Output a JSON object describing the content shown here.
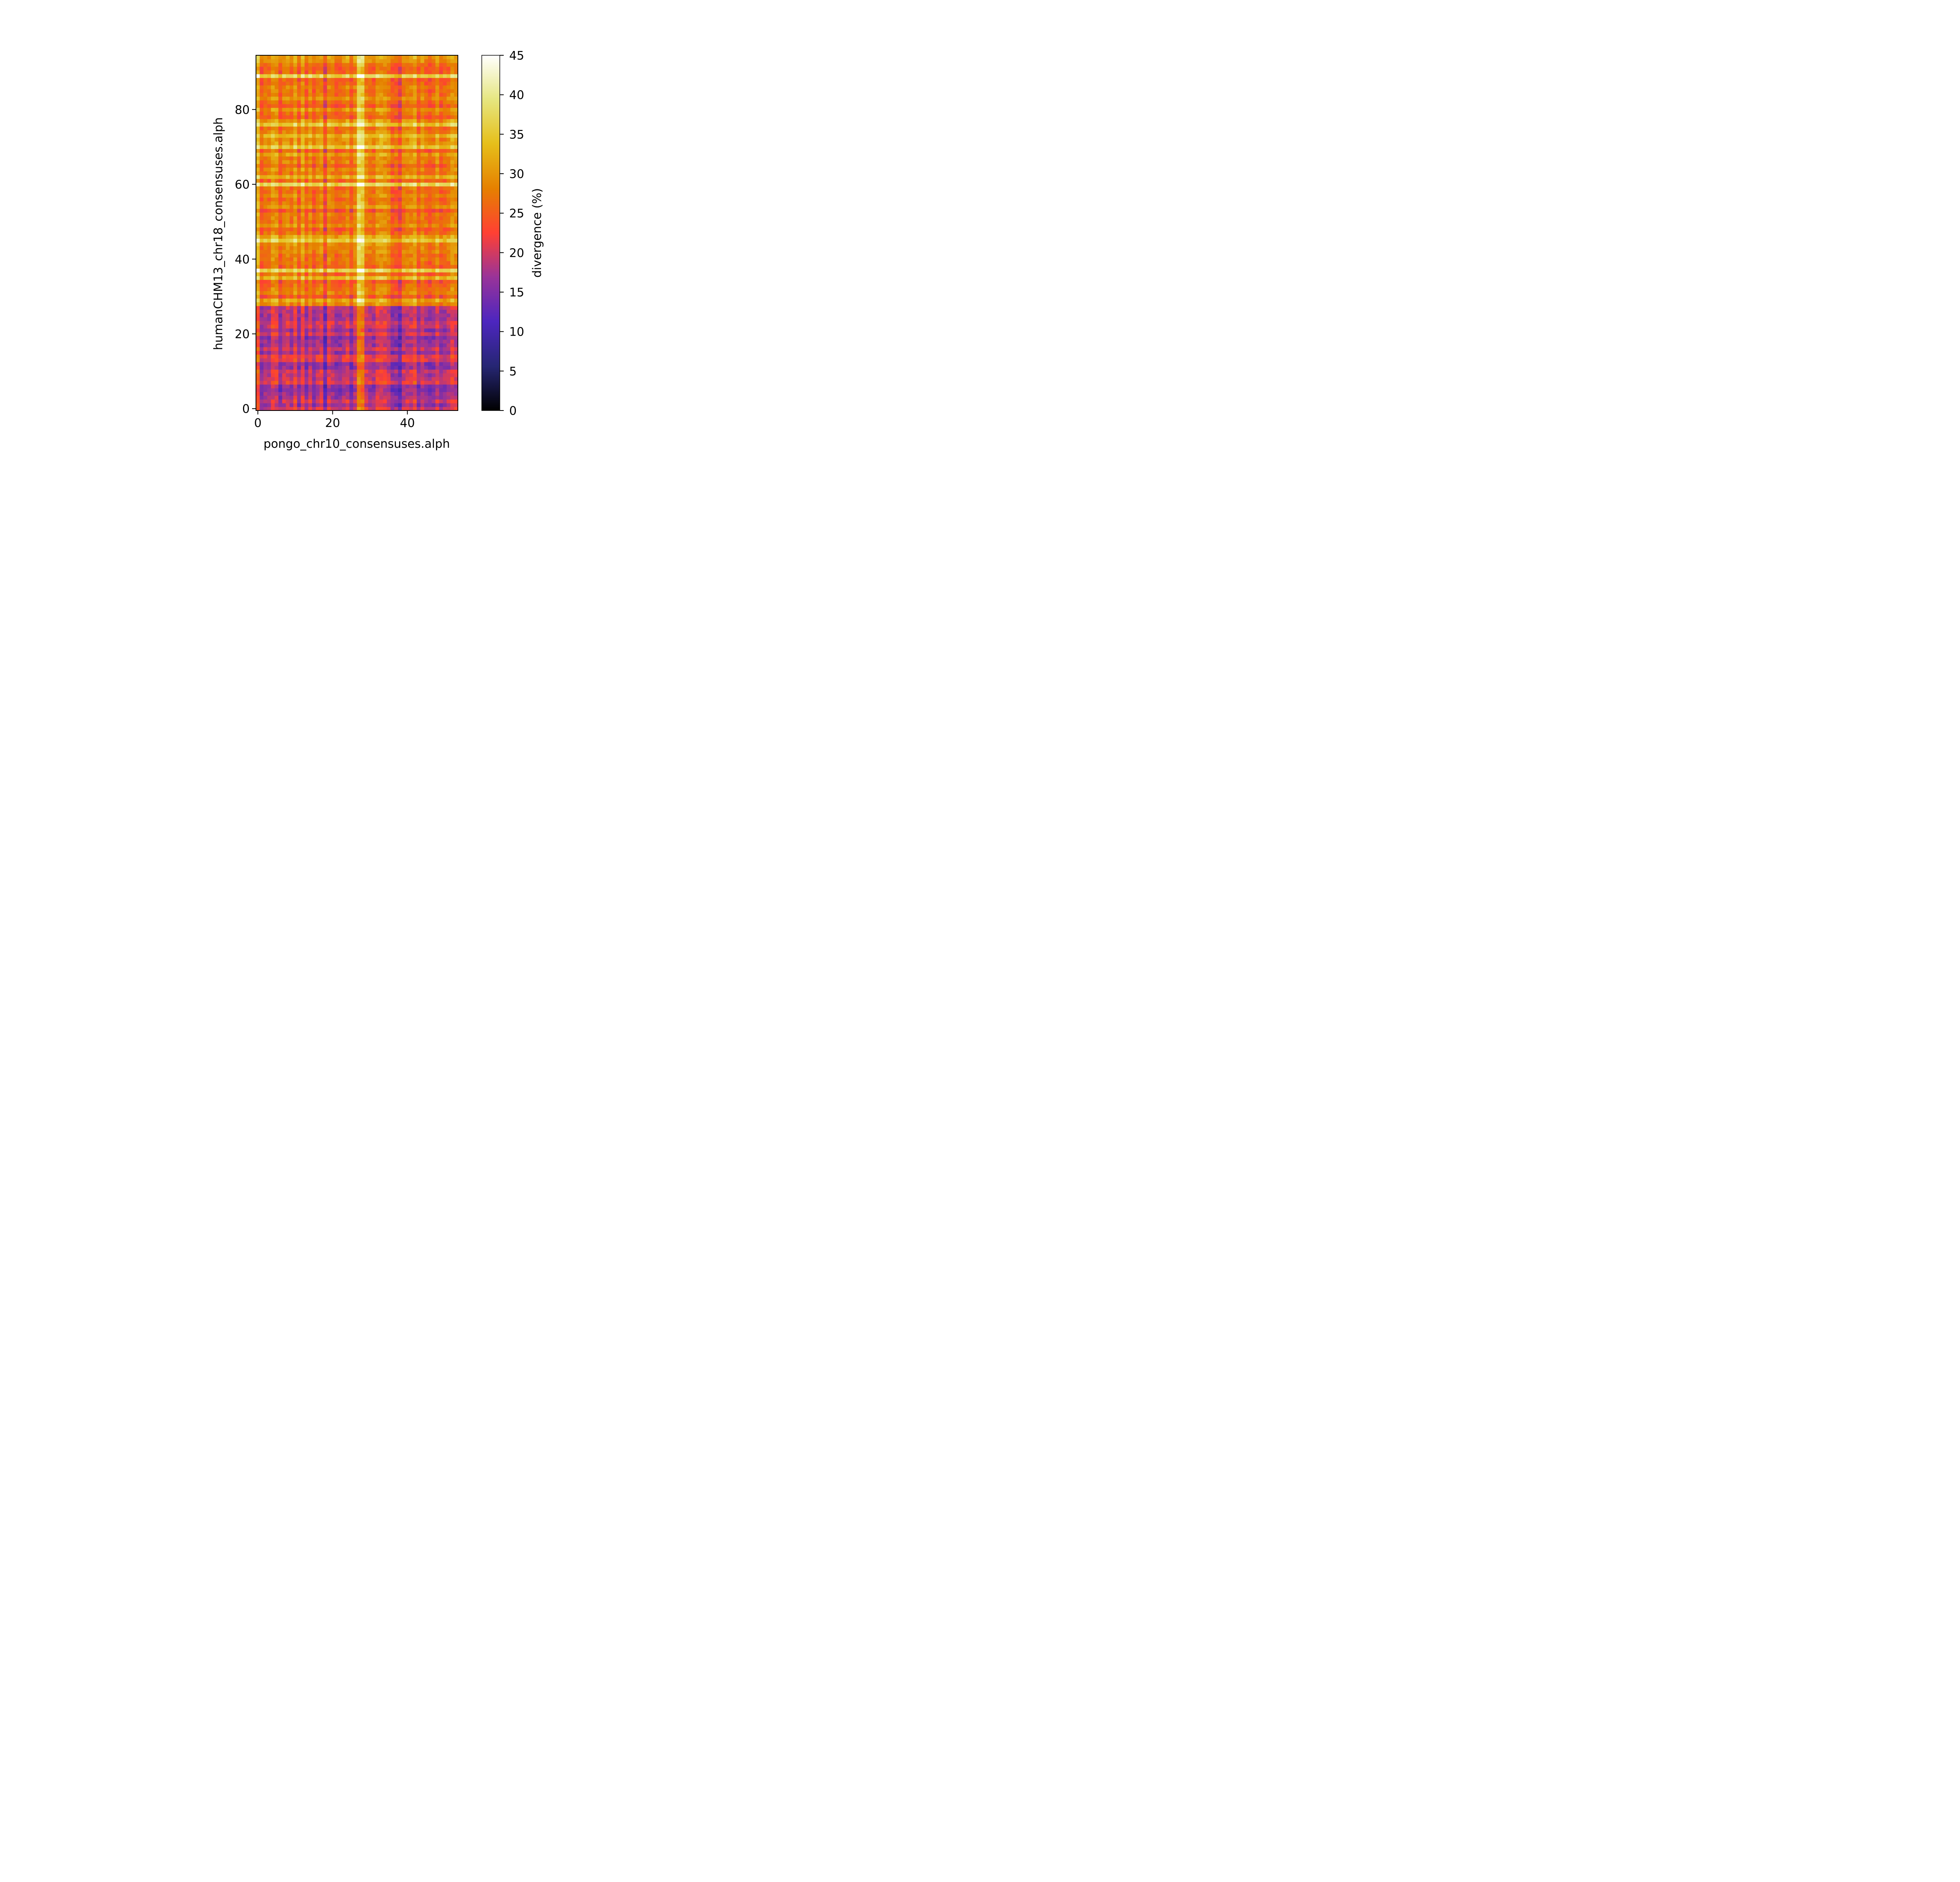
{
  "chart_data": {
    "type": "heatmap",
    "title": "",
    "xlabel": "pongo_chr10_consensuses.alph",
    "ylabel": "humanCHM13_chr18_consensuses.alph",
    "n_cols": 54,
    "n_rows": 95,
    "xlim": [
      -0.5,
      53.5
    ],
    "ylim": [
      -0.5,
      94.5
    ],
    "x_ticks": [
      0,
      20,
      40
    ],
    "y_ticks": [
      0,
      20,
      40,
      60,
      80
    ],
    "colorbar": {
      "label": "divergence (%)",
      "min": 0,
      "max": 45,
      "ticks": [
        0,
        5,
        10,
        15,
        20,
        25,
        30,
        35,
        40,
        45
      ],
      "colormap": "CMRmap",
      "color_stops": [
        {
          "value": 0,
          "color": "#000000"
        },
        {
          "value": 5.6,
          "color": "#262673"
        },
        {
          "value": 11.3,
          "color": "#4d26bf"
        },
        {
          "value": 16.9,
          "color": "#993399"
        },
        {
          "value": 22.5,
          "color": "#ff4033"
        },
        {
          "value": 28.1,
          "color": "#e68000"
        },
        {
          "value": 33.8,
          "color": "#e6bf1a"
        },
        {
          "value": 39.4,
          "color": "#e6e680"
        },
        {
          "value": 45,
          "color": "#ffffff"
        }
      ]
    },
    "row_band_divergence": [
      {
        "rows": [
          0,
          27
        ],
        "level": 19
      },
      {
        "rows": [
          28,
          54
        ],
        "level": 27
      },
      {
        "rows": [
          55,
          94
        ],
        "level": 28
      }
    ],
    "bright_rows": [
      29,
      35,
      37,
      45,
      46,
      60,
      62,
      70,
      73,
      76,
      89
    ],
    "bright_columns": [
      0,
      27,
      28
    ],
    "dark_columns": [
      11,
      18,
      38,
      43
    ]
  }
}
